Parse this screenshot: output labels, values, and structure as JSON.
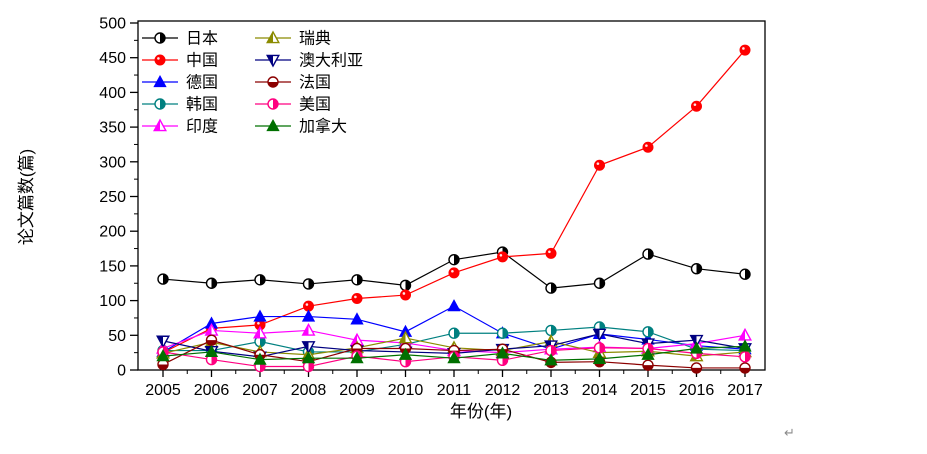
{
  "page": {
    "background": "#ffffff",
    "return_mark": "↵"
  },
  "chart_data": {
    "type": "line",
    "title": "",
    "xlabel": "年份(年)",
    "ylabel": "论文篇数(篇)",
    "x": [
      2005,
      2006,
      2007,
      2008,
      2009,
      2010,
      2011,
      2012,
      2013,
      2014,
      2015,
      2016,
      2017
    ],
    "ylim": [
      0,
      500
    ],
    "ytick_interval": 50,
    "ytick_minor_interval": 25,
    "yticks": [
      0,
      50,
      100,
      150,
      200,
      250,
      300,
      350,
      400,
      450,
      500
    ],
    "grid": false,
    "legend_position": "top-left-inside",
    "legend_columns": [
      [
        "日本",
        "中国",
        "德国",
        "韩国",
        "印度"
      ],
      [
        "瑞典",
        "澳大利亚",
        "法国",
        "美国",
        "加拿大"
      ]
    ],
    "series": [
      {
        "name": "日本",
        "color": "#000000",
        "marker": "half-filled-circle",
        "values": [
          131,
          125,
          130,
          124,
          130,
          122,
          159,
          170,
          118,
          125,
          167,
          146,
          138
        ]
      },
      {
        "name": "中国",
        "color": "#ff0000",
        "marker": "filled-circle",
        "values": [
          25,
          60,
          65,
          92,
          103,
          108,
          140,
          163,
          168,
          295,
          321,
          380,
          461
        ]
      },
      {
        "name": "德国",
        "color": "#0000ff",
        "marker": "filled-triangle-up",
        "values": [
          26,
          67,
          77,
          77,
          73,
          55,
          92,
          53,
          30,
          52,
          44,
          35,
          30
        ]
      },
      {
        "name": "韩国",
        "color": "#008080",
        "marker": "half-filled-circle",
        "values": [
          28,
          28,
          41,
          26,
          26,
          37,
          53,
          53,
          57,
          62,
          55,
          30,
          28
        ]
      },
      {
        "name": "印度",
        "color": "#ff00ff",
        "marker": "half-filled-triangle-up",
        "values": [
          31,
          57,
          53,
          57,
          43,
          39,
          28,
          25,
          30,
          33,
          31,
          38,
          50
        ]
      },
      {
        "name": "瑞典",
        "color": "#8b8b00",
        "marker": "half-filled-triangle-up",
        "values": [
          24,
          40,
          26,
          22,
          32,
          46,
          32,
          28,
          41,
          25,
          27,
          20,
          26
        ]
      },
      {
        "name": "澳大利亚",
        "color": "#000080",
        "marker": "half-filled-triangle-down",
        "values": [
          42,
          27,
          19,
          34,
          28,
          26,
          24,
          30,
          35,
          52,
          38,
          43,
          31
        ]
      },
      {
        "name": "法国",
        "color": "#8b0000",
        "marker": "half-filled-circle-bottom",
        "values": [
          8,
          43,
          22,
          12,
          31,
          31,
          28,
          30,
          11,
          12,
          7,
          3,
          3
        ]
      },
      {
        "name": "美国",
        "color": "#ff0080",
        "marker": "half-filled-circle",
        "values": [
          26,
          15,
          5,
          5,
          20,
          12,
          19,
          14,
          28,
          32,
          31,
          24,
          19
        ]
      },
      {
        "name": "加拿大",
        "color": "#007000",
        "marker": "filled-triangle-up",
        "values": [
          20,
          26,
          15,
          17,
          17,
          22,
          17,
          24,
          14,
          16,
          22,
          31,
          34
        ]
      }
    ]
  }
}
